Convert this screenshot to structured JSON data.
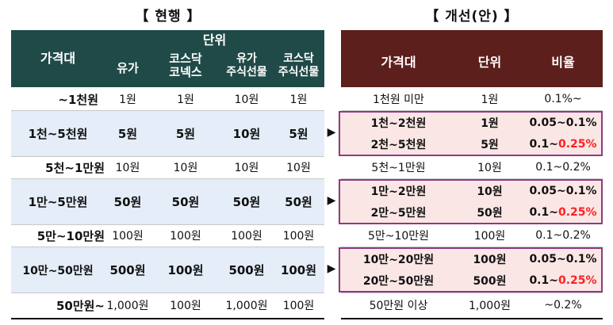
{
  "titles": {
    "current": "【 현행 】",
    "proposed": "【 개선(안) 】"
  },
  "left_header": {
    "price_band": "가격대",
    "unit_group": "단위",
    "col1": "유가",
    "col2_l1": "코스닥",
    "col2_l2": "코넥스",
    "col3_l1": "유가",
    "col3_l2": "주식선물",
    "col4_l1": "코스닥",
    "col4_l2": "주식선물"
  },
  "right_header": {
    "price_band": "가격대",
    "unit": "단위",
    "ratio": "비율"
  },
  "arrow_glyph": "▶",
  "left_rows": [
    {
      "band": "~1천원",
      "c1": "1원",
      "c2": "1원",
      "c3": "10원",
      "c4": "1원"
    },
    {
      "band": "1천~5천원",
      "c1": "5원",
      "c2": "5원",
      "c3": "10원",
      "c4": "5원"
    },
    {
      "band": "5천~1만원",
      "c1": "10원",
      "c2": "10원",
      "c3": "10원",
      "c4": "10원"
    },
    {
      "band": "1만~5만원",
      "c1": "50원",
      "c2": "50원",
      "c3": "50원",
      "c4": "50원"
    },
    {
      "band": "5만~10만원",
      "c1": "100원",
      "c2": "100원",
      "c3": "100원",
      "c4": "100원"
    },
    {
      "band": "10만~50만원",
      "c1": "500원",
      "c2": "100원",
      "c3": "500원",
      "c4": "100원"
    },
    {
      "band": "50만원~",
      "c1": "1,000원",
      "c2": "100원",
      "c3": "1,000원",
      "c4": "100원"
    }
  ],
  "right_rows": [
    {
      "band": "1천원 미만",
      "unit": "1원",
      "ratio": "0.1%~"
    },
    {
      "band": "1천~2천원",
      "unit": "1원",
      "ratio": "0.05~0.1%"
    },
    {
      "band": "2천~5천원",
      "unit": "5원",
      "ratio_a": "0.1~",
      "ratio_b": "0.25%"
    },
    {
      "band": "5천~1만원",
      "unit": "10원",
      "ratio": "0.1~0.2%"
    },
    {
      "band": "1만~2만원",
      "unit": "10원",
      "ratio": "0.05~0.1%"
    },
    {
      "band": "2만~5만원",
      "unit": "50원",
      "ratio_a": "0.1~",
      "ratio_b": "0.25%"
    },
    {
      "band": "5만~10만원",
      "unit": "100원",
      "ratio": "0.1~0.2%"
    },
    {
      "band": "10만~20만원",
      "unit": "100원",
      "ratio": "0.05~0.1%"
    },
    {
      "band": "20만~50만원",
      "unit": "500원",
      "ratio_a": "0.1~",
      "ratio_b": "0.25%"
    },
    {
      "band": "50만원 이상",
      "unit": "1,000원",
      "ratio": "~0.2%"
    }
  ],
  "colors": {
    "left_header": "#1f4a47",
    "right_header": "#5c1f1c",
    "row_highlight": "#e4edf8",
    "box_fill": "#fbe6e6",
    "box_border": "#8e3a82",
    "emphasis": "#ff2020"
  }
}
